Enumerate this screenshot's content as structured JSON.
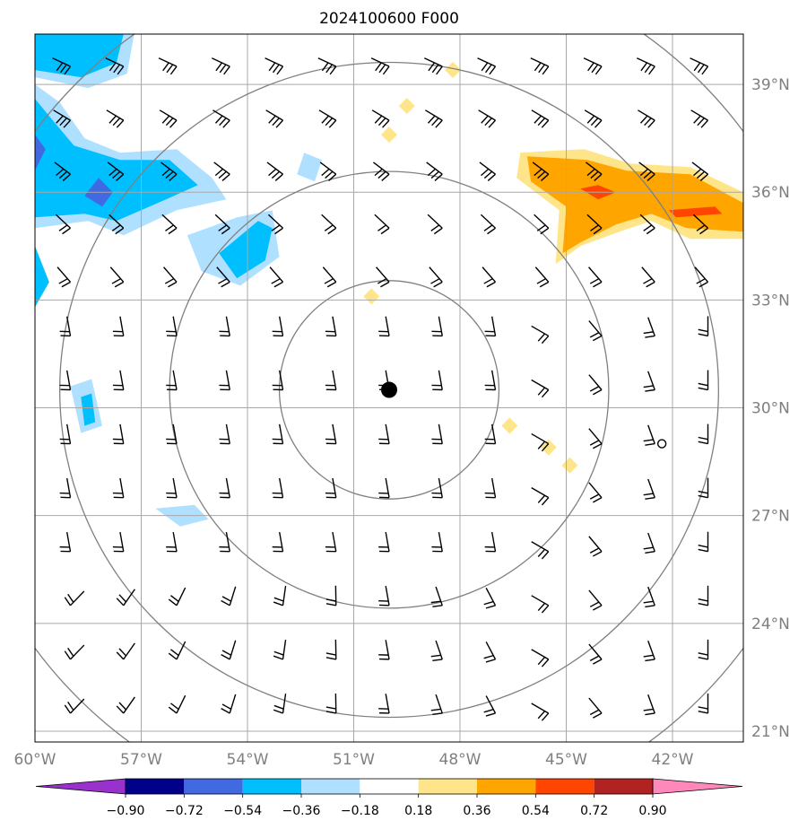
{
  "chart_data": {
    "type": "map",
    "title": "2024100600 F000",
    "x_tick_labels": [
      "60°W",
      "57°W",
      "54°W",
      "51°W",
      "48°W",
      "45°W",
      "42°W"
    ],
    "x_ticks": [
      -60,
      -57,
      -54,
      -51,
      -48,
      -45,
      -42
    ],
    "y_tick_labels": [
      "21°N",
      "24°N",
      "27°N",
      "30°N",
      "33°N",
      "36°N",
      "39°N"
    ],
    "y_ticks": [
      21,
      24,
      27,
      30,
      33,
      36,
      39
    ],
    "lon_range": [
      -60,
      -40
    ],
    "lat_range": [
      20.7,
      40.4
    ],
    "center_marker": {
      "lon": -50,
      "lat": 30.5
    },
    "range_rings_deg": [
      3.1,
      6.2,
      9.3,
      12.4
    ],
    "colorbar": {
      "tick_labels": [
        "−0.90",
        "−0.72",
        "−0.54",
        "−0.36",
        "−0.18",
        "0.18",
        "0.36",
        "0.54",
        "0.72",
        "0.90"
      ],
      "levels": [
        -0.9,
        -0.72,
        -0.54,
        -0.36,
        -0.18,
        0.18,
        0.36,
        0.54,
        0.72,
        0.9
      ],
      "colors": [
        "#9932cc",
        "#00008b",
        "#4169e1",
        "#00bfff",
        "#b0e0ff",
        "#ffffff",
        "#ffe58a",
        "#ffa500",
        "#ff4500",
        "#b22222",
        "#ff88bb"
      ]
    },
    "barb_lons": [
      -59,
      -57.5,
      -56,
      -54.5,
      -53,
      -51.5,
      -50,
      -48.5,
      -47,
      -45.5,
      -44,
      -42.5,
      -41
    ],
    "barb_lats": [
      39.5,
      38,
      36.5,
      35,
      33.5,
      32,
      30.5,
      29,
      27.5,
      26,
      24.5,
      23,
      21.5
    ],
    "shaded_regions": [
      {
        "name": "blue-north-west",
        "value": -0.45
      },
      {
        "name": "blue-west-edge",
        "value": -0.45
      },
      {
        "name": "blue-near-53w-35n",
        "value": -0.45
      },
      {
        "name": "blue-near-58w-30n",
        "value": -0.45
      },
      {
        "name": "orange-north-east",
        "value": 0.5
      }
    ]
  }
}
